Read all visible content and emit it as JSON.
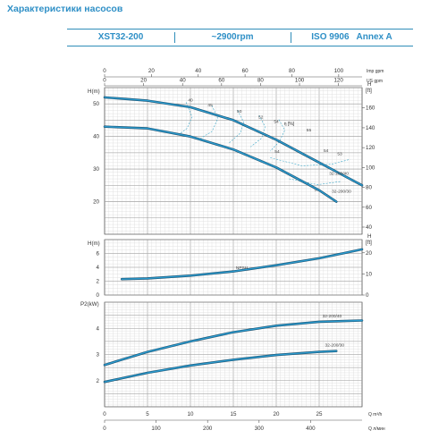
{
  "title": "Характеристики насосов",
  "header": {
    "model": "XST32-200",
    "speed": "~2900rpm",
    "standard": "ISO 9906",
    "grade": "Annex A"
  },
  "colors": {
    "accent": "#2e8fc6",
    "curve": "#2a9bcf",
    "curve_edge": "#1c4f6c",
    "grid_major": "#9a9a9a",
    "grid_minor": "#dadada"
  },
  "chart_data": [
    {
      "type": "line",
      "name": "head-efficiency",
      "top_axes": {
        "imp_gpm": {
          "label": "Imp gpm",
          "ticks": [
            "0",
            "20",
            "40",
            "60",
            "80",
            "100"
          ]
        },
        "us_gpm": {
          "label": "US gpm",
          "ticks": [
            "0",
            "20",
            "40",
            "60",
            "80",
            "100",
            "120"
          ]
        }
      },
      "ylabel": "H(m)",
      "ylim": [
        10,
        55
      ],
      "yticks": [
        "20",
        "30",
        "40",
        "50"
      ],
      "ylabel_right": "H [ft]",
      "ylim_right": [
        40,
        180
      ],
      "yticks_right": [
        "40",
        "60",
        "80",
        "100",
        "120",
        "140",
        "160"
      ],
      "xlim": [
        0,
        30
      ],
      "eff_label": "η [%]",
      "series": [
        {
          "name": "32-200/40",
          "x": [
            0,
            5,
            10,
            15,
            20,
            25,
            30
          ],
          "y": [
            52,
            51,
            49,
            45,
            39,
            32,
            25
          ]
        },
        {
          "name": "32-200/30",
          "x": [
            0,
            5,
            10,
            15,
            20,
            25,
            27
          ],
          "y": [
            43,
            42.5,
            40,
            36,
            30.5,
            23.5,
            20
          ]
        }
      ],
      "efficiency_labels": [
        "40",
        "45",
        "50",
        "52",
        "54",
        "55",
        "54",
        "53",
        "54",
        "50"
      ]
    },
    {
      "type": "line",
      "name": "npsh",
      "ylabel": "H(m)",
      "ylim": [
        0,
        8
      ],
      "yticks": [
        "0",
        "2",
        "4",
        "6"
      ],
      "ylabel_right": "H [ft]",
      "ylim_right": [
        0,
        26.2
      ],
      "yticks_right": [
        "0",
        "10",
        "20"
      ],
      "xlim": [
        0,
        30
      ],
      "series": [
        {
          "name": "NPSH",
          "x": [
            2,
            5,
            10,
            15,
            20,
            25,
            30
          ],
          "y": [
            2.3,
            2.4,
            2.8,
            3.4,
            4.3,
            5.3,
            6.6
          ]
        }
      ]
    },
    {
      "type": "line",
      "name": "power",
      "ylabel": "P2(kW)",
      "ylim": [
        1,
        5
      ],
      "yticks": [
        "2",
        "3",
        "4"
      ],
      "xlim": [
        0,
        30
      ],
      "series": [
        {
          "name": "32-200/40",
          "x": [
            0,
            5,
            10,
            15,
            20,
            25,
            30
          ],
          "y": [
            2.6,
            3.1,
            3.5,
            3.85,
            4.1,
            4.25,
            4.3
          ]
        },
        {
          "name": "32-200/30",
          "x": [
            0,
            5,
            10,
            15,
            20,
            25,
            27
          ],
          "y": [
            1.95,
            2.3,
            2.58,
            2.8,
            2.98,
            3.1,
            3.13
          ]
        }
      ],
      "x_axes": {
        "m3h": {
          "label": "Q  m³/h",
          "ticks": [
            "0",
            "5",
            "10",
            "15",
            "20",
            "25"
          ]
        },
        "lmin": {
          "label": "Q  л/мин",
          "ticks": [
            "0",
            "100",
            "200",
            "300",
            "400"
          ]
        }
      }
    }
  ]
}
